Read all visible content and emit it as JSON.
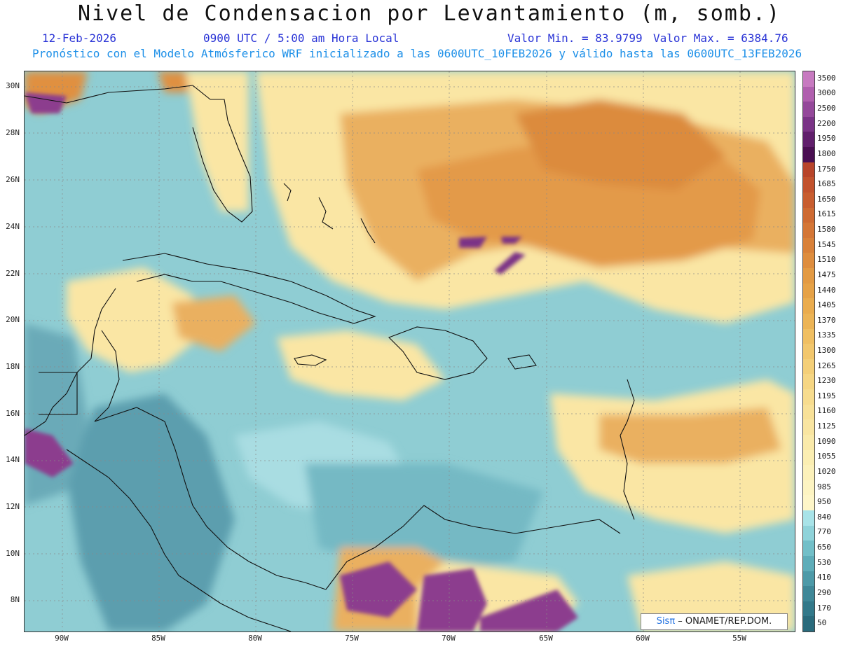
{
  "header": {
    "title": "Nivel de Condensacion por Levantamiento (m, somb.)",
    "date": "12-Feb-2026",
    "time": "0900 UTC / 5:00 am Hora Local",
    "min_value": "Valor Min. = 83.9799",
    "max_value": "Valor Max. = 6384.76",
    "forecast_note": "Pronóstico con el Modelo Atmósferico WRF inicializado a las 0600UTC_10FEB2026 y válido hasta las  0600UTC_13FEB2026"
  },
  "map": {
    "lat_labels": [
      "30N",
      "28N",
      "26N",
      "24N",
      "22N",
      "20N",
      "18N",
      "16N",
      "14N",
      "12N",
      "10N",
      "8N"
    ],
    "lon_labels": [
      "90W",
      "85W",
      "80W",
      "75W",
      "70W",
      "65W",
      "60W",
      "55W"
    ]
  },
  "colorbar": {
    "labels": [
      "3500",
      "3000",
      "2500",
      "2200",
      "1950",
      "1800",
      "1750",
      "1685",
      "1650",
      "1615",
      "1580",
      "1545",
      "1510",
      "1475",
      "1440",
      "1405",
      "1370",
      "1335",
      "1300",
      "1265",
      "1230",
      "1195",
      "1160",
      "1125",
      "1090",
      "1055",
      "1020",
      "985",
      "950",
      "840",
      "770",
      "650",
      "530",
      "410",
      "290",
      "170",
      "50"
    ],
    "colors": [
      "#c77ac0",
      "#b05fae",
      "#94489a",
      "#7a3386",
      "#611f6c",
      "#4a0f52",
      "#b8452a",
      "#c2522d",
      "#c85d2f",
      "#ce6a32",
      "#d47636",
      "#d98139",
      "#de8d3e",
      "#e39a43",
      "#e6a247",
      "#eaac4e",
      "#ecb456",
      "#f0bf62",
      "#f2c76d",
      "#f4cf78",
      "#f6d683",
      "#f7dc8e",
      "#f8e198",
      "#f9e5a1",
      "#faeaaa",
      "#fbeeb2",
      "#fcf1ba",
      "#fdf4c2",
      "#fef6c8",
      "#a8e3e8",
      "#8fd3da",
      "#72bfc8",
      "#5eadb9",
      "#4d9aa8",
      "#3f8898",
      "#33798a",
      "#2a6b7c"
    ]
  },
  "credit": {
    "sis": "Sisπ",
    "rest": " – ONAMET/REP.DOM."
  }
}
